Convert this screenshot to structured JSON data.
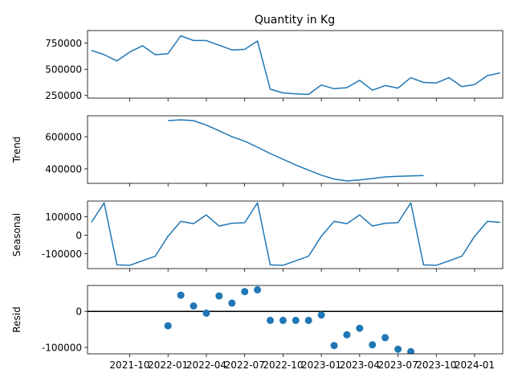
{
  "figure_title": "Quantity in Kg",
  "colors": {
    "series": "#1f77b4",
    "axis": "#000000",
    "background": "#ffffff"
  },
  "shared_x": {
    "start": "2021-07",
    "end": "2024-03",
    "ticks": [
      {
        "date": "2021-10",
        "label": "2021-10"
      },
      {
        "date": "2022-01",
        "label": "2022-01"
      },
      {
        "date": "2022-04",
        "label": "2022-04"
      },
      {
        "date": "2022-07",
        "label": "2022-07"
      },
      {
        "date": "2022-10",
        "label": "2022-10"
      },
      {
        "date": "2023-01",
        "label": "2023-01"
      },
      {
        "date": "2023-04",
        "label": "2023-04"
      },
      {
        "date": "2023-07",
        "label": "2023-07"
      },
      {
        "date": "2023-10",
        "label": "2023-10"
      },
      {
        "date": "2024-01",
        "label": "2024-01"
      }
    ]
  },
  "chart_data": [
    {
      "type": "line",
      "title": "Quantity in Kg",
      "ylabel": "",
      "ylim": [
        225000,
        870000
      ],
      "yticks": [
        250000,
        500000,
        750000
      ],
      "series": [
        {
          "x": [
            "2021-07",
            "2021-08",
            "2021-09",
            "2021-10",
            "2021-11",
            "2021-12",
            "2022-01",
            "2022-02",
            "2022-03",
            "2022-04",
            "2022-05",
            "2022-06",
            "2022-07",
            "2022-08",
            "2022-09",
            "2022-10",
            "2022-11",
            "2022-12",
            "2023-01",
            "2023-02",
            "2023-03",
            "2023-04",
            "2023-05",
            "2023-06",
            "2023-07",
            "2023-08",
            "2023-09",
            "2023-10",
            "2023-11",
            "2023-12",
            "2024-01",
            "2024-02",
            "2024-03"
          ],
          "values": [
            680000,
            640000,
            580000,
            665000,
            725000,
            640000,
            650000,
            820000,
            775000,
            775000,
            730000,
            685000,
            690000,
            770000,
            310000,
            275000,
            265000,
            260000,
            350000,
            315000,
            325000,
            395000,
            300000,
            345000,
            320000,
            420000,
            375000,
            370000,
            420000,
            335000,
            355000,
            440000,
            465000
          ]
        }
      ]
    },
    {
      "type": "line",
      "title": "",
      "ylabel": "Trend",
      "ylim": [
        310000,
        730000
      ],
      "yticks": [
        400000,
        600000
      ],
      "series": [
        {
          "x": [
            "2022-01",
            "2022-02",
            "2022-03",
            "2022-04",
            "2022-05",
            "2022-06",
            "2022-07",
            "2022-08",
            "2022-09",
            "2022-10",
            "2022-11",
            "2022-12",
            "2023-01",
            "2023-02",
            "2023-03",
            "2023-04",
            "2023-05",
            "2023-06",
            "2023-07",
            "2023-08",
            "2023-09"
          ],
          "values": [
            700000,
            705000,
            700000,
            672000,
            637000,
            600000,
            572000,
            535000,
            495000,
            460000,
            424000,
            392000,
            361000,
            337000,
            325000,
            331000,
            340000,
            350000,
            354000,
            356000,
            359000
          ]
        }
      ]
    },
    {
      "type": "line",
      "title": "",
      "ylabel": "Seasonal",
      "ylim": [
        -180000,
        185000
      ],
      "yticks": [
        100000,
        0,
        -100000
      ],
      "series": [
        {
          "x": [
            "2021-07",
            "2021-08",
            "2021-09",
            "2021-10",
            "2021-11",
            "2021-12",
            "2022-01",
            "2022-02",
            "2022-03",
            "2022-04",
            "2022-05",
            "2022-06",
            "2022-07",
            "2022-08",
            "2022-09",
            "2022-10",
            "2022-11",
            "2022-12",
            "2023-01",
            "2023-02",
            "2023-03",
            "2023-04",
            "2023-05",
            "2023-06",
            "2023-07",
            "2023-08",
            "2023-09",
            "2023-10",
            "2023-11",
            "2023-12",
            "2024-01",
            "2024-02",
            "2024-03"
          ],
          "values": [
            70000,
            175000,
            -160000,
            -162000,
            -138000,
            -113000,
            -5000,
            75000,
            63000,
            110000,
            50000,
            65000,
            68000,
            175000,
            -160000,
            -162000,
            -138000,
            -113000,
            -5000,
            75000,
            63000,
            110000,
            50000,
            65000,
            68000,
            175000,
            -160000,
            -162000,
            -138000,
            -113000,
            -5000,
            75000,
            70000
          ]
        }
      ]
    },
    {
      "type": "scatter",
      "title": "",
      "ylabel": "Resid",
      "ylim": [
        -118000,
        72000
      ],
      "yticks": [
        0,
        -100000
      ],
      "zero_line": true,
      "series": [
        {
          "x": [
            "2022-01",
            "2022-02",
            "2022-03",
            "2022-04",
            "2022-05",
            "2022-06",
            "2022-07",
            "2022-08",
            "2022-09",
            "2022-10",
            "2022-11",
            "2022-12",
            "2023-01",
            "2023-02",
            "2023-03",
            "2023-04",
            "2023-05",
            "2023-06",
            "2023-07",
            "2023-08"
          ],
          "values": [
            -40000,
            45000,
            15000,
            -5000,
            43000,
            23000,
            55000,
            60000,
            -25000,
            -25000,
            -25000,
            -25000,
            -10000,
            -95000,
            -65000,
            -47000,
            -93000,
            -73000,
            -105000,
            -112000
          ]
        }
      ]
    }
  ]
}
